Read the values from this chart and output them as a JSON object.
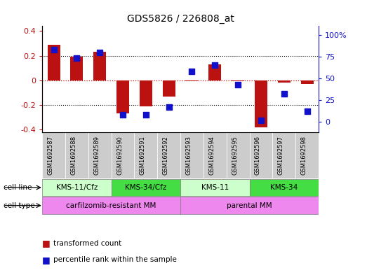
{
  "title": "GDS5826 / 226808_at",
  "samples": [
    "GSM1692587",
    "GSM1692588",
    "GSM1692589",
    "GSM1692590",
    "GSM1692591",
    "GSM1692592",
    "GSM1692593",
    "GSM1692594",
    "GSM1692595",
    "GSM1692596",
    "GSM1692597",
    "GSM1692598"
  ],
  "bar_values": [
    0.29,
    0.19,
    0.23,
    -0.27,
    -0.21,
    -0.13,
    -0.01,
    0.13,
    -0.01,
    -0.38,
    -0.02,
    -0.03
  ],
  "dot_values": [
    83,
    73,
    80,
    8,
    8,
    17,
    58,
    65,
    43,
    2,
    32,
    12
  ],
  "bar_color": "#bb1111",
  "dot_color": "#1111cc",
  "ylim_left": [
    -0.42,
    0.44
  ],
  "ylim_right": [
    -11.55,
    110
  ],
  "yticks_left": [
    -0.4,
    -0.2,
    0.0,
    0.2,
    0.4
  ],
  "ytick_labels_right": [
    "0",
    "25",
    "50",
    "75",
    "100%"
  ],
  "yticks_right": [
    0,
    25,
    50,
    75,
    100
  ],
  "cell_line_groups": [
    {
      "label": "KMS-11/Cfz",
      "start": 0,
      "end": 3,
      "color": "#ccffcc"
    },
    {
      "label": "KMS-34/Cfz",
      "start": 3,
      "end": 6,
      "color": "#44dd44"
    },
    {
      "label": "KMS-11",
      "start": 6,
      "end": 9,
      "color": "#ccffcc"
    },
    {
      "label": "KMS-34",
      "start": 9,
      "end": 12,
      "color": "#44dd44"
    }
  ],
  "cell_type_groups": [
    {
      "label": "carfilzomib-resistant MM",
      "start": 0,
      "end": 6,
      "color": "#ee88ee"
    },
    {
      "label": "parental MM",
      "start": 6,
      "end": 12,
      "color": "#ee88ee"
    }
  ],
  "cell_line_row_label": "cell line",
  "cell_type_row_label": "cell type",
  "legend_bar_label": "transformed count",
  "legend_dot_label": "percentile rank within the sample",
  "background_color": "#ffffff",
  "zero_line_color": "#cc0000",
  "bar_width": 0.55,
  "dot_size": 28,
  "sample_box_color": "#cccccc"
}
